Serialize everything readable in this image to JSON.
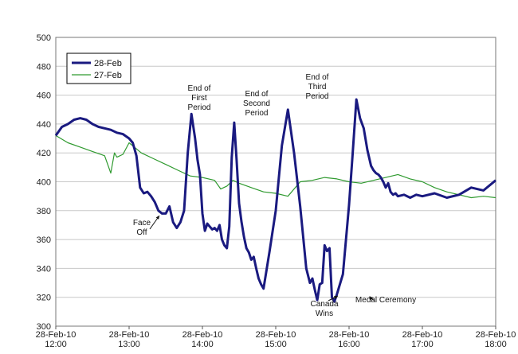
{
  "chart_data": {
    "type": "line",
    "title": "",
    "xlabel": "",
    "ylabel": "",
    "ylim": [
      300,
      500
    ],
    "yticks": [
      300,
      320,
      340,
      360,
      380,
      400,
      420,
      440,
      460,
      480,
      500
    ],
    "xlim": [
      "28-Feb-10 12:00",
      "28-Feb-10 18:00"
    ],
    "xticks": [
      {
        "date": "28-Feb-10",
        "time": "12:00"
      },
      {
        "date": "28-Feb-10",
        "time": "13:00"
      },
      {
        "date": "28-Feb-10",
        "time": "14:00"
      },
      {
        "date": "28-Feb-10",
        "time": "15:00"
      },
      {
        "date": "28-Feb-10",
        "time": "16:00"
      },
      {
        "date": "28-Feb-10",
        "time": "17:00"
      },
      {
        "date": "28-Feb-10",
        "time": "18:00"
      }
    ],
    "grid": {
      "horizontal": true,
      "vertical": false
    },
    "legend_position": "top-left",
    "series": [
      {
        "name": "28-Feb",
        "color": "#1a1a80",
        "x": [
          "12:00",
          "12:05",
          "12:10",
          "12:15",
          "12:20",
          "12:25",
          "12:30",
          "12:35",
          "12:40",
          "12:45",
          "12:50",
          "12:55",
          "13:00",
          "13:03",
          "13:06",
          "13:09",
          "13:12",
          "13:15",
          "13:18",
          "13:21",
          "13:24",
          "13:27",
          "13:30",
          "13:33",
          "13:36",
          "13:39",
          "13:42",
          "13:45",
          "13:48",
          "13:51",
          "13:54",
          "13:56",
          "13:58",
          "14:00",
          "14:02",
          "14:04",
          "14:06",
          "14:08",
          "14:10",
          "14:12",
          "14:14",
          "14:16",
          "14:18",
          "14:20",
          "14:22",
          "14:24",
          "14:26",
          "14:28",
          "14:30",
          "14:32",
          "14:34",
          "14:36",
          "14:38",
          "14:40",
          "14:42",
          "14:44",
          "14:46",
          "14:48",
          "14:50",
          "14:55",
          "15:00",
          "15:05",
          "15:10",
          "15:15",
          "15:20",
          "15:25",
          "15:28",
          "15:30",
          "15:32",
          "15:34",
          "15:36",
          "15:38",
          "15:40",
          "15:42",
          "15:44",
          "15:46",
          "15:48",
          "15:50",
          "15:55",
          "16:00",
          "16:03",
          "16:06",
          "16:09",
          "16:12",
          "16:15",
          "16:18",
          "16:20",
          "16:22",
          "16:24",
          "16:26",
          "16:28",
          "16:30",
          "16:32",
          "16:34",
          "16:36",
          "16:38",
          "16:40",
          "16:45",
          "16:50",
          "16:55",
          "17:00",
          "17:10",
          "17:20",
          "17:30",
          "17:40",
          "17:50",
          "18:00"
        ],
        "y": [
          432,
          438,
          440,
          443,
          444,
          443,
          440,
          438,
          437,
          436,
          434,
          433,
          430,
          427,
          418,
          396,
          392,
          393,
          390,
          386,
          380,
          378,
          378,
          383,
          372,
          368,
          372,
          380,
          420,
          447,
          430,
          415,
          405,
          378,
          366,
          371,
          369,
          367,
          368,
          366,
          370,
          360,
          356,
          354,
          369,
          417,
          441,
          415,
          385,
          372,
          362,
          354,
          351,
          346,
          348,
          340,
          333,
          329,
          326,
          352,
          380,
          425,
          450,
          420,
          383,
          340,
          330,
          333,
          325,
          318,
          329,
          330,
          356,
          352,
          354,
          320,
          317,
          322,
          336,
          384,
          420,
          457,
          444,
          437,
          422,
          411,
          408,
          406,
          405,
          403,
          400,
          396,
          399,
          393,
          391,
          392,
          390,
          391,
          389,
          391,
          390,
          392,
          389,
          391,
          396,
          394,
          401
        ]
      },
      {
        "name": "27-Feb",
        "color": "#2f9a2f",
        "x": [
          "12:00",
          "12:10",
          "12:20",
          "12:30",
          "12:40",
          "12:45",
          "12:48",
          "12:50",
          "12:55",
          "13:00",
          "13:10",
          "13:20",
          "13:30",
          "13:40",
          "13:50",
          "14:00",
          "14:10",
          "14:15",
          "14:20",
          "14:25",
          "14:30",
          "14:40",
          "14:50",
          "15:00",
          "15:10",
          "15:20",
          "15:30",
          "15:40",
          "15:50",
          "16:00",
          "16:10",
          "16:20",
          "16:30",
          "16:40",
          "16:50",
          "17:00",
          "17:10",
          "17:20",
          "17:30",
          "17:40",
          "17:50",
          "18:00"
        ],
        "y": [
          432,
          427,
          424,
          421,
          418,
          406,
          420,
          417,
          419,
          427,
          420,
          416,
          412,
          408,
          404,
          403,
          401,
          395,
          397,
          401,
          399,
          396,
          393,
          392,
          390,
          400,
          401,
          403,
          402,
          400,
          399,
          401,
          403,
          405,
          402,
          400,
          396,
          393,
          391,
          389,
          390,
          389
        ]
      }
    ],
    "annotations": [
      {
        "lines": [
          "Face",
          "Off"
        ],
        "x": "13:23",
        "y": 378
      },
      {
        "lines": [
          "End of",
          "First",
          "Period"
        ],
        "x": "13:56",
        "y": 447
      },
      {
        "lines": [
          "End of",
          "Second",
          "Period"
        ],
        "x": "14:40",
        "y": 441
      },
      {
        "lines": [
          "End of",
          "Third",
          "Period"
        ],
        "x": "15:30",
        "y": 450
      },
      {
        "lines": [
          "Canada",
          "Wins"
        ],
        "x": "15:56",
        "y": 317
      },
      {
        "lines": [
          "Medal Ceremony"
        ],
        "x": "16:23",
        "y": 316
      }
    ]
  }
}
